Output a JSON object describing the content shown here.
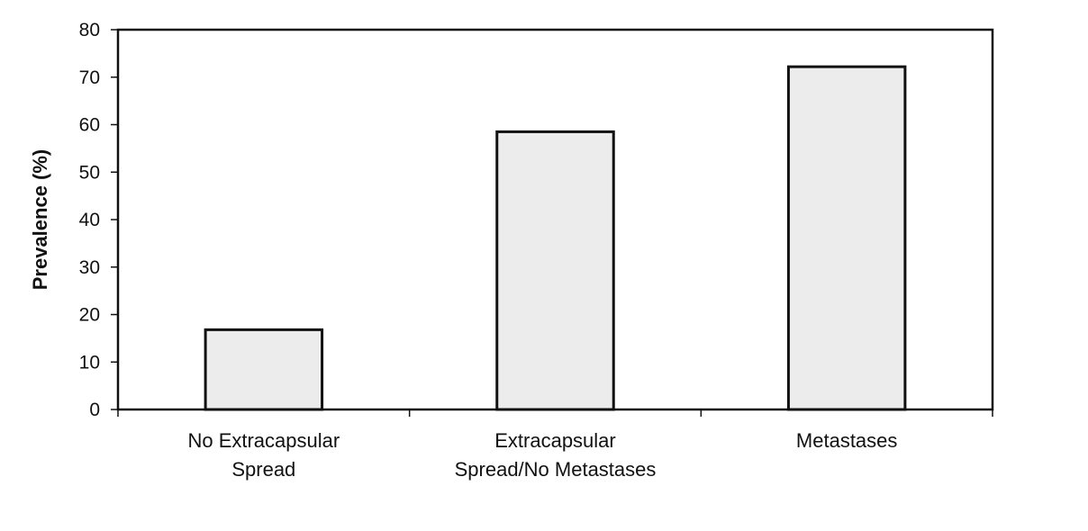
{
  "chart_data": {
    "type": "bar",
    "categories": [
      [
        "No Extracapsular",
        "Spread"
      ],
      [
        "Extracapsular",
        "Spread/No Metastases"
      ],
      [
        "Metastases"
      ]
    ],
    "values": [
      16.8,
      58.5,
      72.2
    ],
    "title": "",
    "xlabel": "",
    "ylabel": "Prevalence (%)",
    "ylim": [
      0,
      80
    ],
    "yticks": [
      0,
      10,
      20,
      30,
      40,
      50,
      60,
      70,
      80
    ],
    "grid": false,
    "legend": "none",
    "colors": {
      "bar_fill": "#ececec",
      "bar_stroke": "#111111",
      "text": "#111111"
    }
  }
}
